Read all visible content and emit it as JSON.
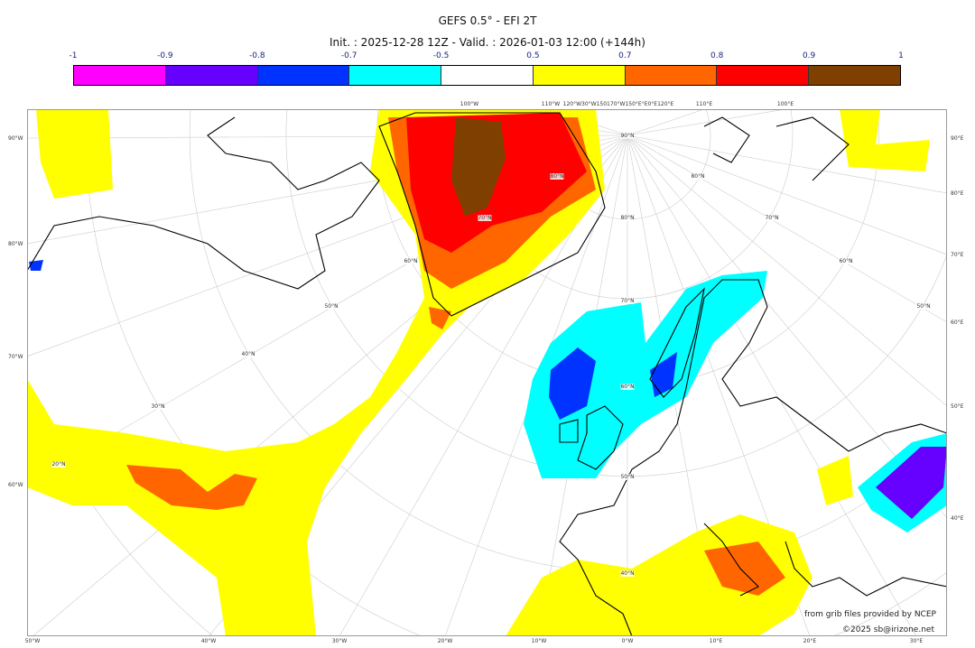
{
  "title": "GEFS 0.5° - EFI 2T",
  "subtitle": "Init. : 2025-12-28 12Z - Valid. : 2026-01-03 12:00 (+144h)",
  "colorbar": {
    "ticks": [
      "-1",
      "-0.9",
      "-0.8",
      "-0.7",
      "-0.5",
      "0.5",
      "0.7",
      "0.8",
      "0.9",
      "1"
    ],
    "colors": [
      "#ff00ff",
      "#6600ff",
      "#0033ff",
      "#00ffff",
      "#ffffff",
      "#ffff00",
      "#ff6600",
      "#ff0000",
      "#7f3f00"
    ]
  },
  "labels": {
    "bottom": [
      "50°W",
      "40°W",
      "30°W",
      "20°W",
      "10°W",
      "0°W",
      "10°E",
      "20°E",
      "30°E"
    ],
    "left": [
      "90°W",
      "80°W",
      "70°W",
      "60°W"
    ],
    "right": [
      "90°E",
      "80°E",
      "70°E",
      "60°E",
      "50°E",
      "40°E"
    ],
    "top": [
      "100°W",
      "110°W",
      "120°W30°W150170°W150°E°E0°E120°E",
      "110°E",
      "100°E"
    ],
    "lat": [
      "90°N",
      "80°N",
      "70°N",
      "60°N",
      "50°N",
      "40°N",
      "20°N",
      "30°N",
      "40°N",
      "50°N",
      "60°N",
      "70°N",
      "80°N",
      "80°N",
      "70°N",
      "60°N",
      "50°N"
    ]
  },
  "credits": {
    "line1": "from grib files provided by NCEP",
    "line2": "©2025 sb@irizone.net"
  }
}
